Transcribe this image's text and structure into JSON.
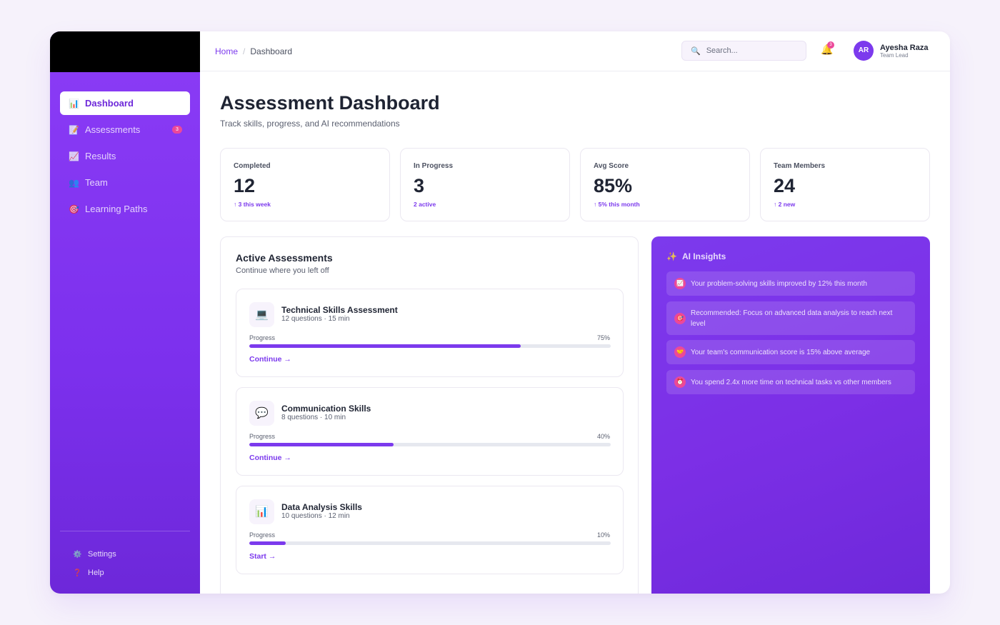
{
  "colors": {
    "accent": "#7c3aed",
    "badge": "#ec4899",
    "sidebar": "#8b3cf6"
  },
  "sidebar": {
    "items": [
      {
        "label": "Dashboard",
        "icon": "bar-chart-icon",
        "glyph": "📊",
        "active": true
      },
      {
        "label": "Assessments",
        "icon": "memo-icon",
        "glyph": "📝",
        "badge": "3"
      },
      {
        "label": "Results",
        "icon": "trend-chart-icon",
        "glyph": "📈"
      },
      {
        "label": "Team",
        "icon": "people-icon",
        "glyph": "👥"
      },
      {
        "label": "Learning Paths",
        "icon": "target-icon",
        "glyph": "🎯"
      }
    ],
    "footer": [
      {
        "label": "Settings",
        "icon": "gear-icon",
        "glyph": "⚙️"
      },
      {
        "label": "Help",
        "icon": "question-icon",
        "glyph": "❓"
      }
    ]
  },
  "header": {
    "breadcrumb": {
      "home": "Home",
      "current": "Dashboard"
    },
    "search": {
      "placeholder": "Search..."
    },
    "notifications": {
      "count": "3"
    },
    "user": {
      "initials": "AR",
      "name": "Ayesha Raza",
      "role": "Team Lead"
    }
  },
  "page": {
    "title": "Assessment Dashboard",
    "subtitle": "Track skills, progress, and AI recommendations"
  },
  "stats": [
    {
      "label": "Completed",
      "value": "12",
      "delta": "↑ 3 this week"
    },
    {
      "label": "In Progress",
      "value": "3",
      "delta": "2 active"
    },
    {
      "label": "Avg Score",
      "value": "85%",
      "delta": "↑ 5% this month"
    },
    {
      "label": "Team Members",
      "value": "24",
      "delta": "↑ 2 new"
    }
  ],
  "active": {
    "title": "Active Assessments",
    "subtitle": "Continue where you left off",
    "items": [
      {
        "name": "Technical Skills Assessment",
        "meta": "12 questions · 15 min",
        "icon": "laptop-icon",
        "glyph": "💻",
        "progress_label": "Progress",
        "progress_text": "75%",
        "progress": 75,
        "action": "Continue →"
      },
      {
        "name": "Communication Skills",
        "meta": "8 questions · 10 min",
        "icon": "speech-bubble-icon",
        "glyph": "💬",
        "progress_label": "Progress",
        "progress_text": "40%",
        "progress": 40,
        "action": "Continue →"
      },
      {
        "name": "Data Analysis Skills",
        "meta": "10 questions · 12 min",
        "icon": "bar-chart-icon",
        "glyph": "📊",
        "progress_label": "Progress",
        "progress_text": "10%",
        "progress": 10,
        "action": "Start →"
      }
    ]
  },
  "ai": {
    "title": "AI Insights",
    "icon": "sparkles-icon",
    "glyph": "✨",
    "insights": [
      {
        "text": "Your problem-solving skills improved by 12% this month",
        "icon": "trend-chart-icon",
        "glyph": "📈"
      },
      {
        "text": "Recommended: Focus on advanced data analysis to reach next level",
        "icon": "target-icon",
        "glyph": "🎯"
      },
      {
        "text": "Your team's communication score is 15% above average",
        "icon": "handshake-icon",
        "glyph": "🤝"
      },
      {
        "text": "You spend 2.4x more time on technical tasks vs other members",
        "icon": "clock-icon",
        "glyph": "⏰"
      }
    ]
  }
}
